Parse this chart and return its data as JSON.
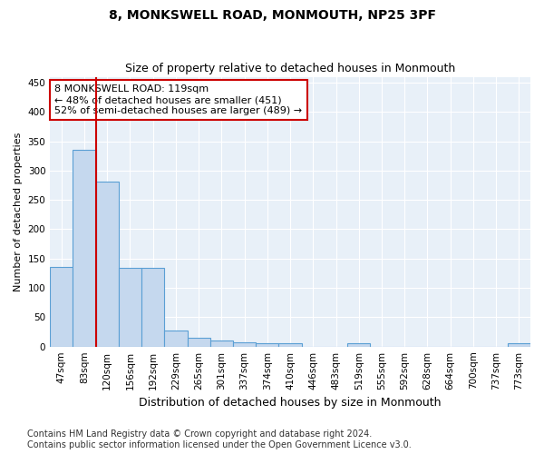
{
  "title": "8, MONKSWELL ROAD, MONMOUTH, NP25 3PF",
  "subtitle": "Size of property relative to detached houses in Monmouth",
  "xlabel": "Distribution of detached houses by size in Monmouth",
  "ylabel": "Number of detached properties",
  "bar_labels": [
    "47sqm",
    "83sqm",
    "120sqm",
    "156sqm",
    "192sqm",
    "229sqm",
    "265sqm",
    "301sqm",
    "337sqm",
    "374sqm",
    "410sqm",
    "446sqm",
    "483sqm",
    "519sqm",
    "555sqm",
    "592sqm",
    "628sqm",
    "664sqm",
    "700sqm",
    "737sqm",
    "773sqm"
  ],
  "bar_heights": [
    136,
    336,
    281,
    134,
    134,
    27,
    15,
    11,
    7,
    6,
    5,
    0,
    0,
    5,
    0,
    0,
    0,
    0,
    0,
    0,
    5
  ],
  "bar_color": "#c5d8ee",
  "bar_edge_color": "#5a9fd4",
  "marker_bar_idx": 1,
  "marker_color": "#cc0000",
  "annotation_line1": "8 MONKSWELL ROAD: 119sqm",
  "annotation_line2": "← 48% of detached houses are smaller (451)",
  "annotation_line3": "52% of semi-detached houses are larger (489) →",
  "annotation_box_color": "#ffffff",
  "annotation_box_edge": "#cc0000",
  "ylim": [
    0,
    460
  ],
  "yticks": [
    0,
    50,
    100,
    150,
    200,
    250,
    300,
    350,
    400,
    450
  ],
  "bg_color": "#e8f0f8",
  "footer": "Contains HM Land Registry data © Crown copyright and database right 2024.\nContains public sector information licensed under the Open Government Licence v3.0.",
  "title_fontsize": 10,
  "subtitle_fontsize": 9,
  "xlabel_fontsize": 9,
  "ylabel_fontsize": 8,
  "tick_fontsize": 7.5,
  "annotation_fontsize": 8,
  "footer_fontsize": 7
}
